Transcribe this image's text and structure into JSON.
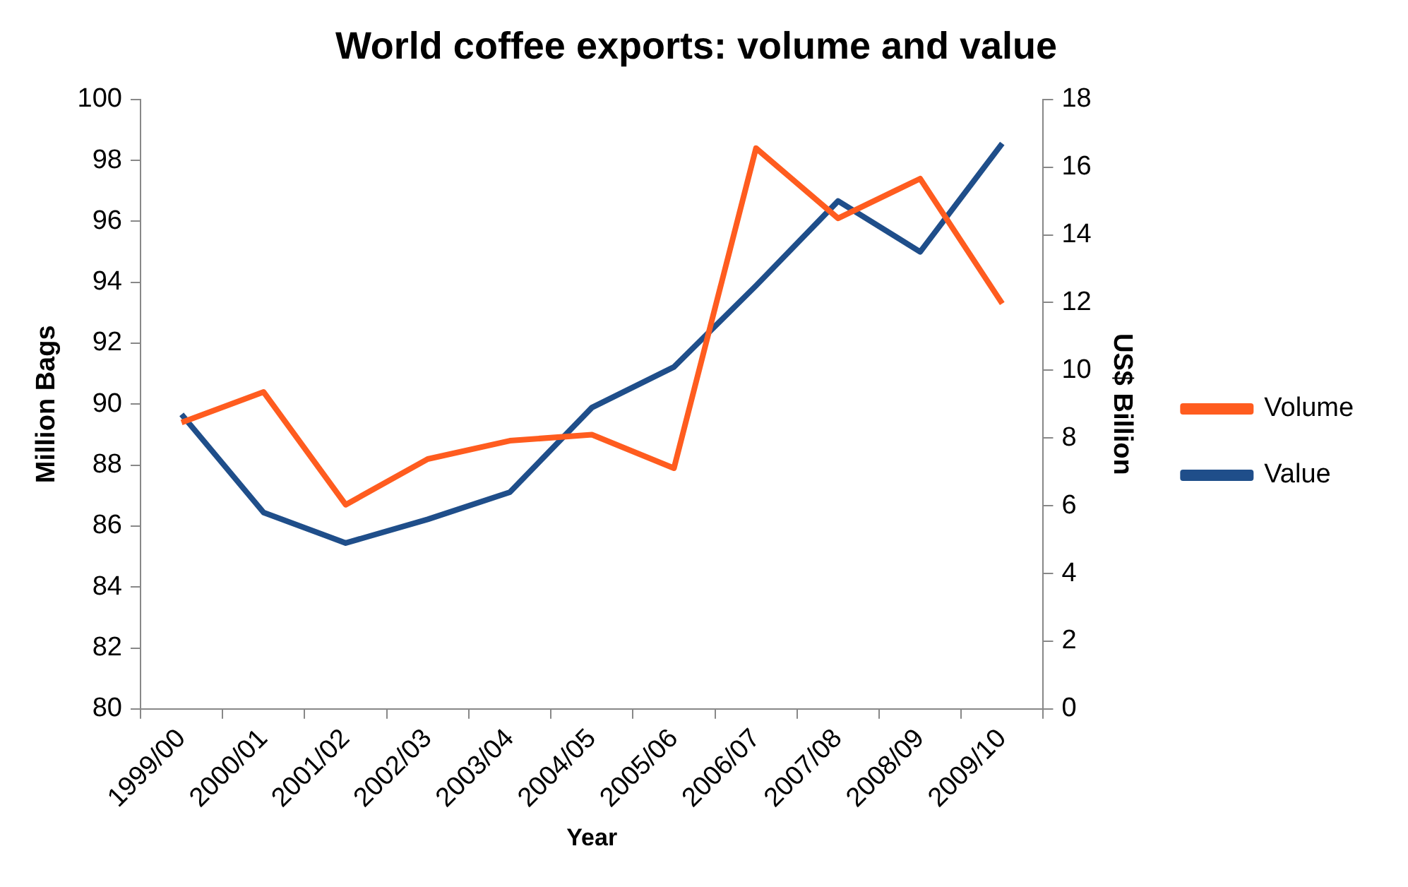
{
  "chart_data": {
    "type": "line",
    "title": "World coffee exports: volume and value",
    "xlabel": "Year",
    "ylabel": "Million Bags",
    "y2label": "US$ Billion",
    "categories": [
      "1999/00",
      "2000/01",
      "2001/02",
      "2002/03",
      "2003/04",
      "2004/05",
      "2005/06",
      "2006/07",
      "2007/08",
      "2008/09",
      "2009/10"
    ],
    "series": [
      {
        "name": "Volume",
        "color": "#ff5c1f",
        "values": [
          89.4,
          90.4,
          86.7,
          88.2,
          88.8,
          89.0,
          87.9,
          98.4,
          96.1,
          97.4,
          93.3
        ]
      },
      {
        "name": "Value",
        "color": "#1f4e8a",
        "axis": "y2",
        "values": [
          8.7,
          5.8,
          4.9,
          5.6,
          6.4,
          8.9,
          10.1,
          12.5,
          15.0,
          13.5,
          16.7
        ]
      }
    ],
    "ylim": [
      80,
      100
    ],
    "yticks": [
      80,
      82,
      84,
      86,
      88,
      90,
      92,
      94,
      96,
      98,
      100
    ],
    "y2lim": [
      0,
      18
    ],
    "y2ticks": [
      0,
      2,
      4,
      6,
      8,
      10,
      12,
      14,
      16,
      18
    ],
    "grid": false,
    "legend": "right",
    "marker": "none",
    "line_style": "solid"
  }
}
